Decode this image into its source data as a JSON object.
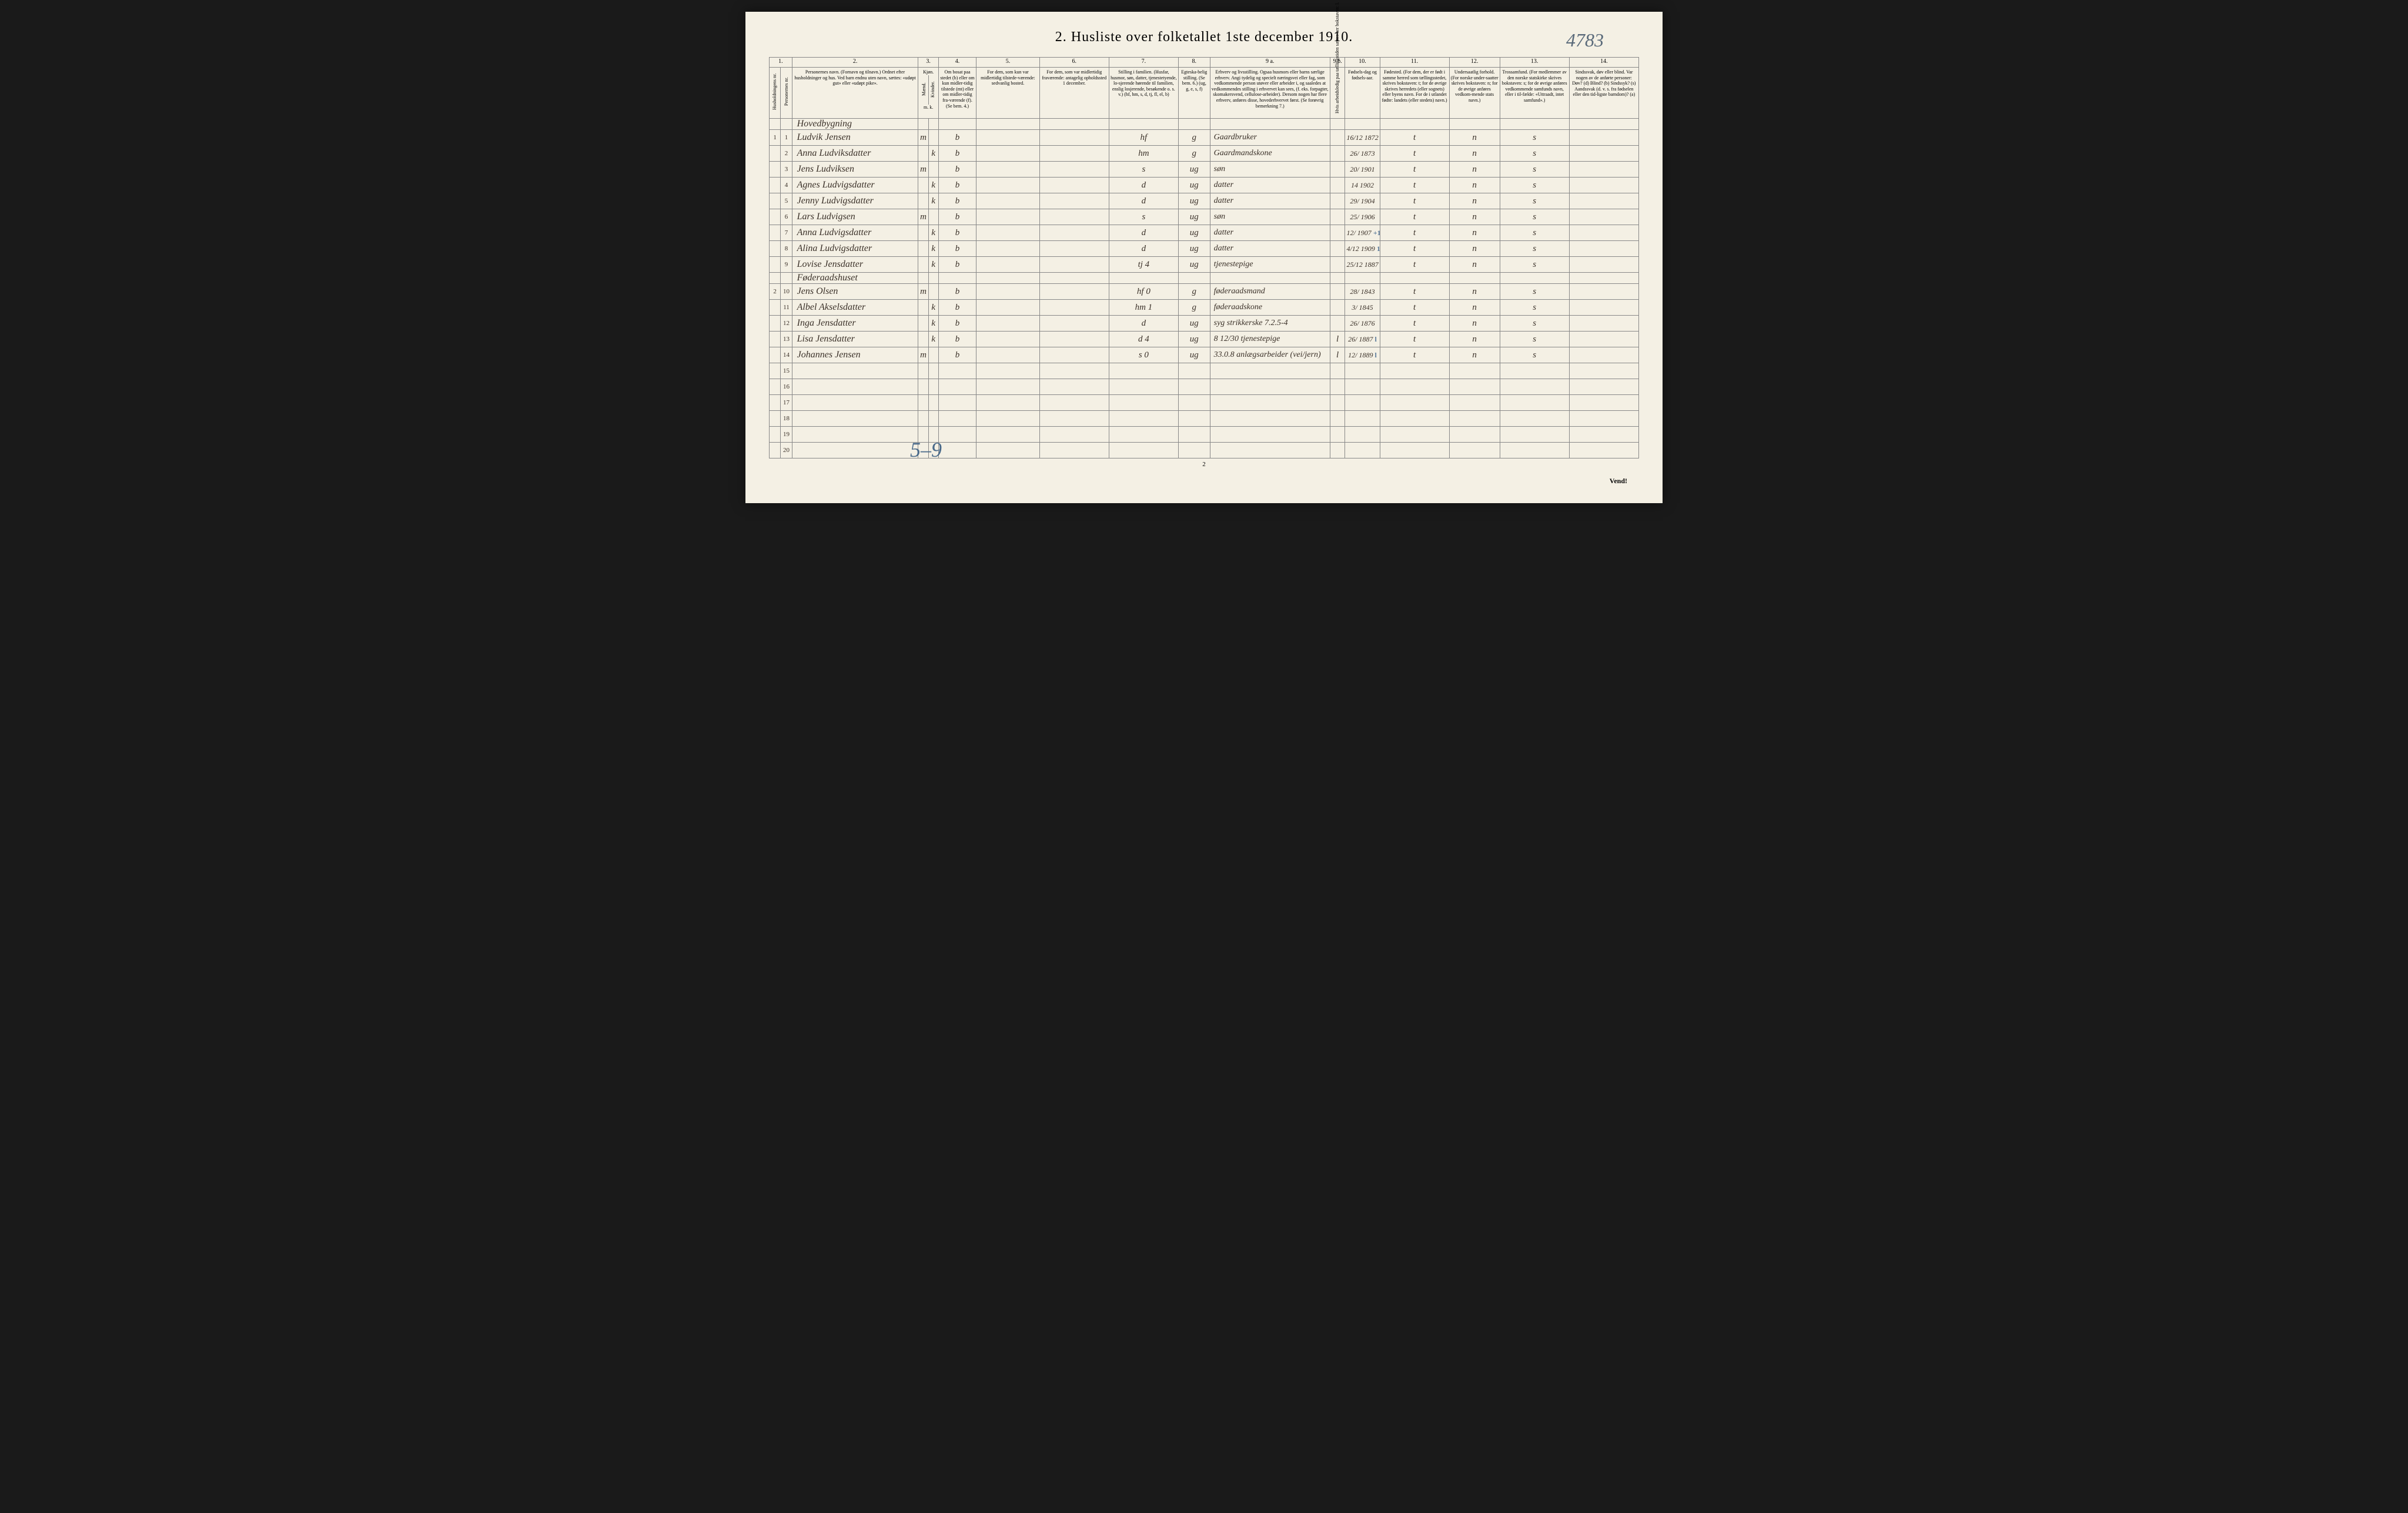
{
  "title": "2. Husliste over folketallet 1ste december 1910.",
  "topright_annotation": "4783",
  "bottom_annotation": "5–9",
  "pagenum": "2",
  "vend": "Vend!",
  "col_numbers": [
    "1.",
    "2.",
    "3.",
    "4.",
    "5.",
    "6.",
    "7.",
    "8.",
    "9 a.",
    "9 b.",
    "10.",
    "11.",
    "12.",
    "13.",
    "14."
  ],
  "headers": {
    "h1a": "Husholdningens nr.",
    "h1b": "Personernes nr.",
    "h2": "Personernes navn.\n(Fornavn og tilnavn.)\nOrdnet efter husholdninger og hus.\nVed barn endnu uten navn, sættes: «udøpt gut» eller «udøpt pike».",
    "h3a": "Kjøn.",
    "h3b": "Mænd.",
    "h3c": "Kvinder.",
    "h3d": "m. k.",
    "h4": "Om bosat paa stedet (b) eller om kun midler-tidig tilstede (mt) eller om midler-tidig fra-værende (f).\n(Se bem. 4.)",
    "h5": "For dem, som kun var midlertidig tilstede-værende:\nsedvanlig bosted.",
    "h6": "For dem, som var midlertidig fraværende:\nantagelig opholdssted 1 december.",
    "h7": "Stilling i familien.\n(Husfar, husmor, søn, datter, tjenestetyende, lo-sjerende hørende til familien, enslig losjerende, besøkende o. s. v.)\n(hf, hm, s, d, tj, fl, el, b)",
    "h8": "Egteska-belig stilling.\n(Se bem. 6.)\n(ug, g, e, s, f)",
    "h9a": "Erhverv og livsstilling.\nOgsaa husmors eller barns særlige erhverv. Angi tydelig og specielt næringsvei eller fag, som vedkommende person utøver eller arbeider i, og saaledes at vedkommendes stilling i erhvervet kan sees, (f. eks. forpagter, skomakersvend, cellulose-arbeider). Dersom nogen har flere erhverv, anføres disse, hovederhvervet først.\n(Se forøvrig bemerkning 7.)",
    "h9b": "Hvis arbeidsledig paa tællingstiden sættes her bokstaven: l.",
    "h10": "Fødsels-dag og fødsels-aar.",
    "h11": "Fødested.\n(For dem, der er født i samme herred som tællingsstedet, skrives bokstaven: t; for de øvrige skrives herredets (eller sognets) eller byens navn. For de i utlandet fødte: landets (eller stedets) navn.)",
    "h12": "Undersaatlig forhold.\n(For norske under-saatter skrives bokstaven: n; for de øvrige anføres vedkom-mende stats navn.)",
    "h13": "Trossamfund.\n(For medlemmer av den norske statskirke skrives bokstaven: s; for de øvrige anføres vedkommende samfunds navn, eller i til-fælde: «Uttraadt, intet samfund».)",
    "h14": "Sindssvak, døv eller blind.\nVar nogen av de anførte personer:\nDøv? (d)\nBlind? (b)\nSindssyk? (s)\nAandssvak (d. v. s. fra fødselen eller den tid-ligste barndom)? (a)"
  },
  "section1": "Hovedbygning",
  "section2": "Føderaadshuset",
  "rows": [
    {
      "hnr": "1",
      "pnr": "1",
      "name": "Ludvik Jensen",
      "sex": "m",
      "res": "b",
      "fam": "hf",
      "mar": "g",
      "occ": "Gaardbruker",
      "dob": "16/12 1872",
      "cross": "+1",
      "birth": "t",
      "nat": "n",
      "rel": "s"
    },
    {
      "hnr": "",
      "pnr": "2",
      "name": "Anna Ludviksdatter",
      "sex": "k",
      "res": "b",
      "fam": "hm",
      "mar": "g",
      "occ": "Gaardmandskone",
      "dob": "26/ 1873",
      "cross": "",
      "birth": "t",
      "nat": "n",
      "rel": "s"
    },
    {
      "hnr": "",
      "pnr": "3",
      "name": "Jens Ludviksen",
      "sex": "m",
      "res": "b",
      "fam": "s",
      "mar": "ug",
      "occ": "søn",
      "dob": "20/ 1901",
      "cross": "",
      "birth": "t",
      "nat": "n",
      "rel": "s"
    },
    {
      "hnr": "",
      "pnr": "4",
      "name": "Agnes Ludvigsdatter",
      "sex": "k",
      "res": "b",
      "fam": "d",
      "mar": "ug",
      "occ": "datter",
      "dob": "14 1902",
      "cross": "",
      "birth": "t",
      "nat": "n",
      "rel": "s"
    },
    {
      "hnr": "",
      "pnr": "5",
      "name": "Jenny Ludvigsdatter",
      "sex": "k",
      "res": "b",
      "fam": "d",
      "mar": "ug",
      "occ": "datter",
      "dob": "29/ 1904",
      "cross": "",
      "birth": "t",
      "nat": "n",
      "rel": "s"
    },
    {
      "hnr": "",
      "pnr": "6",
      "name": "Lars Ludvigsen",
      "sex": "m",
      "res": "b",
      "fam": "s",
      "mar": "ug",
      "occ": "søn",
      "dob": "25/ 1906",
      "cross": "",
      "birth": "t",
      "nat": "n",
      "rel": "s"
    },
    {
      "hnr": "",
      "pnr": "7",
      "name": "Anna Ludvigsdatter",
      "sex": "k",
      "res": "b",
      "fam": "d",
      "mar": "ug",
      "occ": "datter",
      "dob": "12/ 1907",
      "cross": "+1",
      "birth": "t",
      "nat": "n",
      "rel": "s"
    },
    {
      "hnr": "",
      "pnr": "8",
      "name": "Alina Ludvigsdatter",
      "sex": "k",
      "res": "b",
      "fam": "d",
      "mar": "ug",
      "occ": "datter",
      "dob": "4/12 1909",
      "cross": "1",
      "birth": "t",
      "nat": "n",
      "rel": "s"
    },
    {
      "hnr": "",
      "pnr": "9",
      "name": "Lovise Jensdatter",
      "sex": "k",
      "res": "b",
      "fam": "tj   4",
      "mar": "ug",
      "occ": "tjenestepige",
      "dob": "25/12 1887",
      "cross": "+1",
      "birth": "t",
      "nat": "n",
      "rel": "s"
    },
    {
      "hnr": "2",
      "pnr": "10",
      "name": "Jens Olsen",
      "sex": "m",
      "res": "b",
      "fam": "hf   0",
      "mar": "g",
      "occ": "føderaadsmand",
      "dob": "28/ 1843",
      "cross": "",
      "birth": "t",
      "nat": "n",
      "rel": "s"
    },
    {
      "hnr": "",
      "pnr": "11",
      "name": "Albel Akselsdatter",
      "sex": "k",
      "res": "b",
      "fam": "hm   1",
      "mar": "g",
      "occ": "føderaadskone",
      "dob": "3/ 1845",
      "cross": "",
      "birth": "t",
      "nat": "n",
      "rel": "s"
    },
    {
      "hnr": "",
      "pnr": "12",
      "name": "Inga Jensdatter",
      "sex": "k",
      "res": "b",
      "fam": "d",
      "mar": "ug",
      "occ": "syg strikkerske 7.2.5-4",
      "dob": "26/ 1876",
      "cross": "",
      "birth": "t",
      "nat": "n",
      "rel": "s"
    },
    {
      "hnr": "",
      "pnr": "13",
      "name": "Lisa Jensdatter",
      "sex": "k",
      "res": "b",
      "fam": "d   4",
      "mar": "ug",
      "occ": "8 12/30 tjenestepige",
      "dob": "26/ 1887",
      "cross": "l",
      "birth": "t",
      "nat": "n",
      "rel": "s"
    },
    {
      "hnr": "",
      "pnr": "14",
      "name": "Johannes Jensen",
      "sex": "m",
      "res": "b",
      "fam": "s   0",
      "mar": "ug",
      "occ": "33.0.8 anlægsarbeider (vei/jern)",
      "dob": "12/ 1889",
      "cross": "l",
      "birth": "t",
      "nat": "n",
      "rel": "s"
    }
  ],
  "empty_rows": [
    "15",
    "16",
    "17",
    "18",
    "19",
    "20"
  ],
  "colwidths": {
    "c1a": 18,
    "c1b": 18,
    "c2": 200,
    "c3a": 16,
    "c3b": 16,
    "c4": 60,
    "c5": 100,
    "c6": 110,
    "c7": 110,
    "c8": 50,
    "c9a": 190,
    "c9b": 24,
    "c10": 55,
    "c11": 110,
    "c12": 80,
    "c13": 110,
    "c14": 110
  }
}
